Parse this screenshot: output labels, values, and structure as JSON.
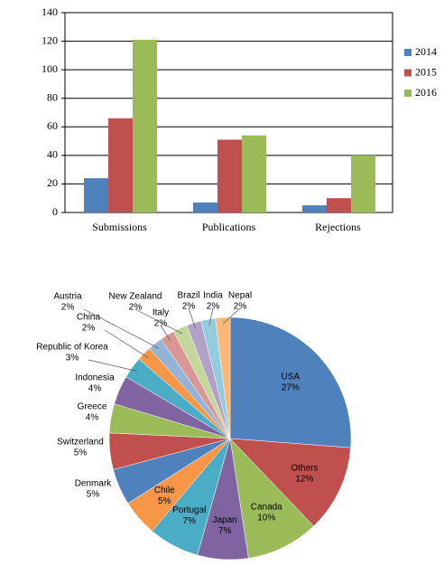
{
  "chart_data": [
    {
      "type": "bar",
      "categories": [
        "Submissions",
        "Publications",
        "Rejections"
      ],
      "series": [
        {
          "name": "2014",
          "color": "#4f81bd",
          "values": [
            24,
            7,
            5
          ]
        },
        {
          "name": "2015",
          "color": "#c0504d",
          "values": [
            66,
            51,
            10
          ]
        },
        {
          "name": "2016",
          "color": "#9bbb59",
          "values": [
            121,
            54,
            40
          ]
        }
      ],
      "ylim": [
        0,
        140
      ],
      "yticks": [
        0,
        20,
        40,
        60,
        80,
        100,
        120,
        140
      ],
      "legend": "right"
    },
    {
      "type": "pie",
      "categories": [
        "USA",
        "Others",
        "Canada",
        "Japan",
        "Portugal",
        "Chile",
        "Denmark",
        "Switzerland",
        "Greece",
        "Indonesia",
        "Republic of Korea",
        "China",
        "Austria",
        "Italy",
        "New Zealand",
        "Brazil",
        "India",
        "Nepal"
      ],
      "values": [
        27,
        12,
        10,
        7,
        7,
        5,
        5,
        5,
        4,
        4,
        3,
        2,
        2,
        2,
        2,
        2,
        2,
        2
      ],
      "value_labels": [
        "27%",
        "12%",
        "10%",
        "7%",
        "7%",
        "5%",
        "5%",
        "5%",
        "4%",
        "4%",
        "3%",
        "2%",
        "2%",
        "2%",
        "2%",
        "2%",
        "2%",
        "2%"
      ],
      "colors": [
        "#4f81bd",
        "#c0504d",
        "#9bbb59",
        "#8064a2",
        "#4bacc6",
        "#f79646",
        "#4f81bd",
        "#c0504d",
        "#9bbb59",
        "#8064a2",
        "#4bacc6",
        "#f79646",
        "#95b3d7",
        "#d99694",
        "#c3d69b",
        "#b3a2c7",
        "#93cddd",
        "#fab776"
      ]
    }
  ]
}
